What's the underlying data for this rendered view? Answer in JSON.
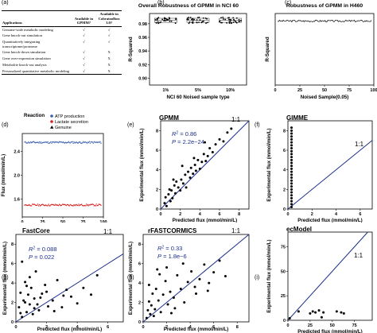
{
  "panel_labels": {
    "a": "(a)",
    "b": "(b)",
    "c": "(c)",
    "d": "(d)",
    "e": "(e)",
    "f": "(f)",
    "g": "(g)",
    "h": "(h)",
    "i": "(i)"
  },
  "table": {
    "headers": [
      "Applications",
      "Available in GPMM?",
      "Available in Cobratoolbox 3.0?"
    ],
    "rows": [
      [
        "Genome-wide metabolic modeling",
        "√",
        "√"
      ],
      [
        "Gene knock-out simulation",
        "√",
        "√"
      ],
      [
        "Quantitatively integrating transcriptome/proteome",
        "√",
        "√"
      ],
      [
        "Gene knock-down simulation",
        "√",
        "X"
      ],
      [
        "Gene over-expression simulation",
        "√",
        "X"
      ],
      [
        "Metabolite knock-out analysis",
        "√",
        "X"
      ],
      [
        "Personalized quantitative metabolic modeling",
        "√",
        "X"
      ]
    ]
  },
  "chart_data": [
    {
      "id": "b",
      "type": "scatter",
      "title": "Overall Robustness of GPMM in NCI 60",
      "xlabel": "NCI 60 Noised sample type",
      "ylabel": "R-Squared",
      "categories": [
        "1%",
        "5%",
        "10%"
      ],
      "yticks": [
        "0.98",
        "0.96",
        "0.94",
        "0.92",
        "0.90"
      ],
      "ylim": [
        0.89,
        0.995
      ],
      "groups": [
        {
          "category": "1%",
          "center": 0.985,
          "spread": 0.003
        },
        {
          "category": "5%",
          "center": 0.985,
          "spread": 0.003
        },
        {
          "category": "10%",
          "center": 0.985,
          "spread": 0.003
        }
      ]
    },
    {
      "id": "c",
      "type": "line",
      "title": "Robustness of GPMM in H460",
      "xlabel": "Noised Sample(0.05)",
      "ylabel": "R-Squared",
      "xticks": [
        "0",
        "25",
        "50",
        "75",
        "100"
      ],
      "xlim": [
        0,
        100
      ],
      "ylim": [
        0,
        1.1
      ],
      "level": 0.985,
      "n": 100
    },
    {
      "id": "d",
      "type": "scatter",
      "xlabel": "Noised Sample(0.05)",
      "ylabel": "Flux (mmol/min/L)",
      "legend_title": "Reaction",
      "series": [
        {
          "name": "ATP production",
          "color": "#3b5fb0",
          "level": 2.55
        },
        {
          "name": "Lactate secretion",
          "color": "#d42020",
          "level": 1.5
        },
        {
          "name": "Genuine",
          "color": "#000000",
          "level": null
        }
      ],
      "xticks": [
        "0",
        "25",
        "50",
        "75",
        "100"
      ],
      "yticks": [
        "2.4",
        "2.0",
        "1.6"
      ],
      "xlim": [
        0,
        100
      ],
      "ylim": [
        1.3,
        2.7
      ],
      "n": 100
    },
    {
      "id": "e",
      "type": "scatter",
      "title": "GPMM",
      "xlabel": "Predicted flux (mmol/min/L)",
      "ylabel": "Experimental flux (mmol/min/L)",
      "xticks": [
        "0",
        "2",
        "4",
        "6",
        "8"
      ],
      "yticks": [
        "0",
        "2",
        "4",
        "6",
        "8"
      ],
      "xlim": [
        0,
        9
      ],
      "ylim": [
        0,
        9
      ],
      "r2_label": "R",
      "r2_value": " = 0.86",
      "p_label": "P",
      "p_value": " = 2.2e−24",
      "ref_label": "1:1",
      "x": [
        0.4,
        0.5,
        0.6,
        0.8,
        1.0,
        1.1,
        1.2,
        1.4,
        1.5,
        1.6,
        1.8,
        2.0,
        2.1,
        2.3,
        2.5,
        2.6,
        2.8,
        3.0,
        3.1,
        3.3,
        3.5,
        3.6,
        3.8,
        4.0,
        4.2,
        4.4,
        4.6,
        4.8,
        5.0,
        5.3,
        5.6,
        6.0,
        6.4,
        6.8,
        7.2,
        2.2,
        3.4,
        4.5,
        1.3,
        0.9
      ],
      "y": [
        0.6,
        1.2,
        0.3,
        1.5,
        0.8,
        1.9,
        1.1,
        2.4,
        1.6,
        2.8,
        2.2,
        1.9,
        3.0,
        2.6,
        3.5,
        2.2,
        3.8,
        3.2,
        4.2,
        3.6,
        4.5,
        3.9,
        5.0,
        4.1,
        4.8,
        5.6,
        4.9,
        5.4,
        6.2,
        5.8,
        6.6,
        7.1,
        6.9,
        7.8,
        8.2,
        4.4,
        5.2,
        6.8,
        3.0,
        2.0
      ]
    },
    {
      "id": "f",
      "type": "scatter",
      "title": "GIMME",
      "xlabel": "Predicted flux (mmol/min/L)",
      "ylabel": "Experimental flux (mmol/min/L)",
      "xticks": [
        "0",
        "2",
        "4",
        "6"
      ],
      "yticks": [
        "0",
        "2",
        "4",
        "6",
        "8"
      ],
      "xlim": [
        0,
        7
      ],
      "ylim": [
        0,
        9
      ],
      "ref_label": "1:1",
      "x": [
        0.3,
        0.3,
        0.3,
        0.3,
        0.3,
        0.3,
        0.3,
        0.3,
        0.3,
        0.3,
        0.3,
        0.3,
        0.3,
        0.3,
        0.3,
        0.3,
        0.3,
        0.3,
        0.3,
        0.3,
        0.3,
        0.3,
        0.3,
        0.3,
        0.3,
        0.3,
        0.3,
        0.3
      ],
      "y": [
        0.2,
        0.5,
        0.8,
        1.1,
        1.4,
        1.7,
        2.0,
        2.3,
        2.6,
        2.9,
        3.2,
        3.5,
        3.8,
        4.1,
        4.4,
        4.7,
        5.0,
        5.3,
        5.6,
        5.9,
        6.2,
        6.5,
        6.8,
        7.1,
        7.4,
        7.7,
        8.0,
        8.3
      ]
    },
    {
      "id": "g",
      "type": "scatter",
      "title": "FastCore",
      "xlabel": "Predicted flux (mmol/min/L)",
      "ylabel": "Experimental flux (mmol/min/L)",
      "xticks": [
        "0",
        "2",
        "4",
        "6"
      ],
      "yticks": [
        "0",
        "2",
        "4",
        "6",
        "8"
      ],
      "xlim": [
        0,
        7
      ],
      "ylim": [
        0,
        9
      ],
      "r2_label": "R",
      "r2_value": " = 0.088",
      "p_label": "P",
      "p_value": " = 0.022",
      "ref_label": "1:1",
      "x": [
        0.2,
        0.3,
        0.4,
        0.5,
        0.6,
        0.7,
        0.8,
        0.9,
        1.0,
        1.1,
        1.2,
        1.3,
        1.5,
        1.7,
        1.9,
        2.1,
        2.4,
        2.7,
        3.0,
        3.3,
        3.6,
        4.0,
        4.4,
        4.9,
        5.3,
        0.4,
        0.6,
        0.9,
        1.2,
        1.6,
        2.0,
        2.5,
        3.1,
        0.3,
        0.7,
        1.4
      ],
      "y": [
        1.5,
        3.0,
        0.5,
        2.2,
        4.1,
        1.0,
        2.8,
        1.8,
        3.5,
        0.8,
        2.4,
        5.2,
        1.2,
        2.9,
        3.8,
        1.6,
        2.2,
        4.3,
        1.5,
        3.3,
        2.6,
        1.9,
        3.5,
        2.8,
        4.8,
        6.2,
        2.0,
        4.6,
        1.4,
        2.5,
        3.1,
        1.1,
        2.7,
        0.9,
        3.7,
        1.8
      ]
    },
    {
      "id": "h",
      "type": "scatter",
      "title": "rFASTCORMICS",
      "xlabel": "Predicted flux (mmol/min/L)",
      "ylabel": "Experimental flux (mmol/min/L)",
      "xticks": [
        "0",
        "2",
        "4",
        "6",
        "8"
      ],
      "yticks": [
        "0",
        "2",
        "4",
        "6",
        "8"
      ],
      "xlim": [
        0,
        9
      ],
      "ylim": [
        0,
        9
      ],
      "r2_label": "R",
      "r2_value": " = 0.33",
      "p_label": "P",
      "p_value": " = 1.8e−6",
      "ref_label": "1:1",
      "x": [
        0.3,
        0.4,
        0.5,
        0.6,
        0.7,
        0.8,
        1.0,
        1.1,
        1.3,
        1.5,
        1.7,
        1.9,
        2.1,
        2.3,
        2.6,
        2.9,
        3.2,
        3.5,
        3.8,
        4.1,
        4.4,
        4.8,
        5.2,
        5.6,
        6.0,
        6.5,
        7.0,
        0.5,
        0.9,
        1.4,
        2.0,
        2.7,
        3.4,
        4.5,
        5.5,
        1.2,
        2.4
      ],
      "y": [
        0.4,
        1.2,
        2.1,
        0.8,
        1.7,
        2.9,
        1.3,
        3.4,
        2.2,
        1.0,
        2.8,
        4.2,
        1.8,
        3.1,
        2.5,
        4.8,
        3.4,
        2.0,
        4.1,
        5.2,
        3.6,
        4.4,
        5.9,
        4.0,
        5.1,
        6.3,
        4.7,
        3.8,
        0.6,
        4.9,
        5.6,
        1.4,
        6.0,
        2.9,
        3.2,
        5.4,
        0.9
      ]
    },
    {
      "id": "i",
      "type": "scatter",
      "title": "ecModel",
      "xlabel": "Predicted flux (mmol/min/L)",
      "ylabel": "Experimental flux (mmol/min/L)",
      "xticks": [
        "0",
        "25",
        "50",
        "75"
      ],
      "yticks": [
        "0",
        "25",
        "50",
        "75"
      ],
      "xlim": [
        0,
        95
      ],
      "ylim": [
        0,
        90
      ],
      "ref_label": "1:1",
      "x": [
        2,
        12,
        25,
        28,
        31,
        35,
        38,
        40,
        55,
        60,
        63
      ],
      "y": [
        2,
        9,
        7,
        9,
        8,
        10,
        3,
        8,
        9,
        8,
        7
      ]
    }
  ]
}
